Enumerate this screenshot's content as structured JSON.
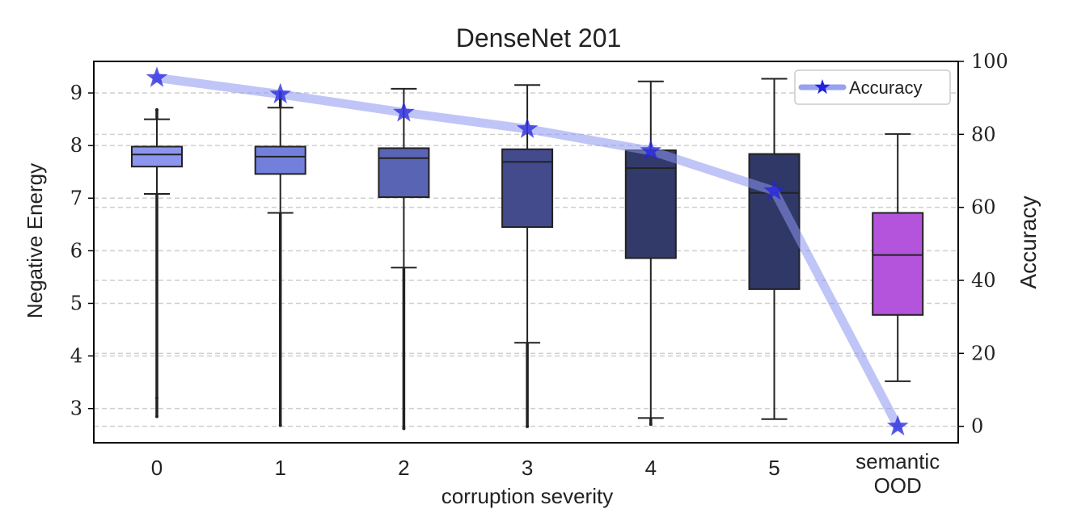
{
  "chart_data": {
    "type": "box",
    "title": "DenseNet 201",
    "xlabel": "corruption severity",
    "ylabel": "Negative Energy",
    "y2label": "Accuracy",
    "categories": [
      "0",
      "1",
      "2",
      "3",
      "4",
      "5",
      "semantic\nOOD"
    ],
    "ylim": [
      2.35,
      9.6
    ],
    "yticks": [
      3,
      4,
      5,
      6,
      7,
      8,
      9
    ],
    "y2lim": [
      -4.5,
      100
    ],
    "y2ticks": [
      0,
      20,
      40,
      60,
      80,
      100
    ],
    "grid": "horizontal dashed",
    "boxes": [
      {
        "category": "0",
        "whisker_low": 7.08,
        "q1": 7.6,
        "median": 7.83,
        "q3": 7.98,
        "whisker_high": 8.5,
        "fliers_low": [
          2.85,
          3.2
        ],
        "fliers_high": [
          8.68
        ],
        "color": "#8c96f0"
      },
      {
        "category": "1",
        "whisker_low": 6.72,
        "q1": 7.46,
        "median": 7.79,
        "q3": 7.98,
        "whisker_high": 8.72,
        "fliers_low": [
          2.68
        ],
        "fliers_high": [
          9.0
        ],
        "color": "#7280dc"
      },
      {
        "category": "2",
        "whisker_low": 5.68,
        "q1": 7.02,
        "median": 7.76,
        "q3": 7.95,
        "whisker_high": 9.08,
        "fliers_low": [
          2.62
        ],
        "fliers_high": [],
        "color": "#5a64b4"
      },
      {
        "category": "3",
        "whisker_low": 4.25,
        "q1": 6.45,
        "median": 7.69,
        "q3": 7.93,
        "whisker_high": 9.15,
        "fliers_low": [
          2.66
        ],
        "fliers_high": [],
        "color": "#434b8c"
      },
      {
        "category": "4",
        "whisker_low": 2.82,
        "q1": 5.86,
        "median": 7.57,
        "q3": 7.91,
        "whisker_high": 9.22,
        "fliers_low": [
          2.7
        ],
        "fliers_high": [],
        "color": "#323a6a"
      },
      {
        "category": "5",
        "whisker_low": 2.8,
        "q1": 5.27,
        "median": 7.1,
        "q3": 7.84,
        "whisker_high": 9.27,
        "fliers_low": [],
        "fliers_high": [],
        "color": "#2f3866"
      },
      {
        "category": "semantic OOD",
        "whisker_low": 3.52,
        "q1": 4.78,
        "median": 5.92,
        "q3": 6.72,
        "whisker_high": 8.22,
        "fliers_low": [],
        "fliers_high": [],
        "color": "#b453dc"
      }
    ],
    "series": [
      {
        "name": "Accuracy",
        "axis": "right",
        "type": "line",
        "marker": "star",
        "color": "#8c96f0",
        "marker_color": "#2323dc",
        "values": [
          95.5,
          91,
          86,
          81.5,
          75.5,
          64.5,
          0
        ]
      }
    ],
    "legend": {
      "position": "top-right",
      "entries": [
        "Accuracy"
      ]
    }
  }
}
